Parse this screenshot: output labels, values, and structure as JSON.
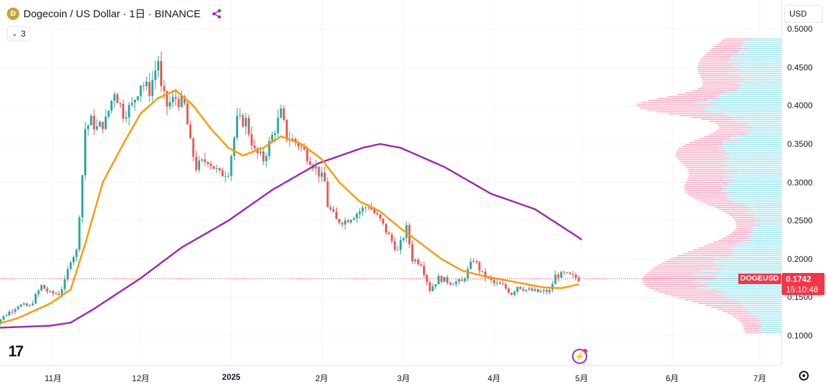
{
  "legend": {
    "symbol_title": "Dogecoin / US Dollar · 1日 · BINANCE",
    "coin_glyph": "Ð",
    "indicator_count": "3"
  },
  "currency_selector": "USD",
  "symbol_tag": "DOGEUSD",
  "last_price": "0.1742",
  "countdown": "15:10:48",
  "colors": {
    "up": "#26a69a",
    "down": "#ef5350",
    "ma_fast": "#ff9800",
    "ma_slow": "#9c27b0",
    "profile_up": "#80deea",
    "profile_down": "#f48fb1",
    "last_price": "#f23645"
  },
  "chart_data": {
    "type": "candlestick",
    "y_axis": {
      "min": 0.09,
      "max": 0.5,
      "ticks": [
        "0.5000",
        "0.4500",
        "0.4000",
        "0.3500",
        "0.3000",
        "0.2500",
        "0.2000",
        "0.1500",
        "0.1000"
      ],
      "tick_values": [
        0.5,
        0.45,
        0.4,
        0.35,
        0.3,
        0.25,
        0.2,
        0.15,
        0.1
      ],
      "grid": true
    },
    "x_axis": {
      "labels": [
        {
          "text": "11月",
          "date": "2024-11-01",
          "bold": false
        },
        {
          "text": "12月",
          "date": "2024-12-01",
          "bold": false
        },
        {
          "text": "2025",
          "date": "2025-01-01",
          "bold": true
        },
        {
          "text": "2月",
          "date": "2025-02-01",
          "bold": false
        },
        {
          "text": "3月",
          "date": "2025-03-01",
          "bold": false
        },
        {
          "text": "4月",
          "date": "2025-04-01",
          "bold": false
        },
        {
          "text": "5月",
          "date": "2025-05-01",
          "bold": false
        },
        {
          "text": "6月",
          "date": "2025-06-01",
          "bold": false
        },
        {
          "text": "7月",
          "date": "2025-07-01",
          "bold": false
        }
      ],
      "grid": true
    },
    "close_anchors": [
      [
        "2024-10-11",
        0.111
      ],
      [
        "2024-10-15",
        0.125
      ],
      [
        "2024-10-20",
        0.14
      ],
      [
        "2024-10-24",
        0.138
      ],
      [
        "2024-10-28",
        0.165
      ],
      [
        "2024-10-31",
        0.155
      ],
      [
        "2024-11-03",
        0.155
      ],
      [
        "2024-11-05",
        0.17
      ],
      [
        "2024-11-07",
        0.2
      ],
      [
        "2024-11-09",
        0.21
      ],
      [
        "2024-11-11",
        0.31
      ],
      [
        "2024-11-12",
        0.37
      ],
      [
        "2024-11-14",
        0.38
      ],
      [
        "2024-11-16",
        0.37
      ],
      [
        "2024-11-19",
        0.38
      ],
      [
        "2024-11-22",
        0.42
      ],
      [
        "2024-11-25",
        0.39
      ],
      [
        "2024-11-28",
        0.4
      ],
      [
        "2024-12-01",
        0.43
      ],
      [
        "2024-12-04",
        0.42
      ],
      [
        "2024-12-07",
        0.46
      ],
      [
        "2024-12-08",
        0.42
      ],
      [
        "2024-12-10",
        0.4
      ],
      [
        "2024-12-13",
        0.41
      ],
      [
        "2024-12-16",
        0.4
      ],
      [
        "2024-12-18",
        0.35
      ],
      [
        "2024-12-20",
        0.32
      ],
      [
        "2024-12-24",
        0.33
      ],
      [
        "2024-12-28",
        0.31
      ],
      [
        "2024-12-31",
        0.315
      ],
      [
        "2025-01-03",
        0.38
      ],
      [
        "2025-01-06",
        0.38
      ],
      [
        "2025-01-09",
        0.34
      ],
      [
        "2025-01-12",
        0.33
      ],
      [
        "2025-01-15",
        0.36
      ],
      [
        "2025-01-18",
        0.39
      ],
      [
        "2025-01-20",
        0.36
      ],
      [
        "2025-01-24",
        0.35
      ],
      [
        "2025-01-28",
        0.33
      ],
      [
        "2025-02-02",
        0.3
      ],
      [
        "2025-02-03",
        0.27
      ],
      [
        "2025-02-06",
        0.25
      ],
      [
        "2025-02-09",
        0.25
      ],
      [
        "2025-02-13",
        0.26
      ],
      [
        "2025-02-17",
        0.27
      ],
      [
        "2025-02-21",
        0.25
      ],
      [
        "2025-02-24",
        0.23
      ],
      [
        "2025-02-27",
        0.21
      ],
      [
        "2025-03-02",
        0.24
      ],
      [
        "2025-03-04",
        0.2
      ],
      [
        "2025-03-07",
        0.195
      ],
      [
        "2025-03-10",
        0.16
      ],
      [
        "2025-03-13",
        0.175
      ],
      [
        "2025-03-17",
        0.17
      ],
      [
        "2025-03-21",
        0.17
      ],
      [
        "2025-03-25",
        0.2
      ],
      [
        "2025-03-28",
        0.18
      ],
      [
        "2025-04-01",
        0.168
      ],
      [
        "2025-04-04",
        0.165
      ],
      [
        "2025-04-07",
        0.155
      ],
      [
        "2025-04-09",
        0.165
      ],
      [
        "2025-04-12",
        0.16
      ],
      [
        "2025-04-16",
        0.157
      ],
      [
        "2025-04-20",
        0.158
      ],
      [
        "2025-04-22",
        0.178
      ],
      [
        "2025-04-25",
        0.18
      ],
      [
        "2025-04-27",
        0.178
      ],
      [
        "2025-04-30",
        0.174
      ]
    ],
    "ma_fast_anchors": [
      [
        "2024-10-11",
        0.113
      ],
      [
        "2024-10-20",
        0.123
      ],
      [
        "2024-10-31",
        0.142
      ],
      [
        "2024-11-07",
        0.16
      ],
      [
        "2024-11-12",
        0.22
      ],
      [
        "2024-11-18",
        0.3
      ],
      [
        "2024-11-25",
        0.35
      ],
      [
        "2024-12-01",
        0.39
      ],
      [
        "2024-12-07",
        0.41
      ],
      [
        "2024-12-13",
        0.42
      ],
      [
        "2024-12-19",
        0.4
      ],
      [
        "2024-12-25",
        0.37
      ],
      [
        "2024-12-31",
        0.345
      ],
      [
        "2025-01-05",
        0.335
      ],
      [
        "2025-01-12",
        0.345
      ],
      [
        "2025-01-18",
        0.36
      ],
      [
        "2025-01-25",
        0.35
      ],
      [
        "2025-02-01",
        0.33
      ],
      [
        "2025-02-07",
        0.3
      ],
      [
        "2025-02-14",
        0.275
      ],
      [
        "2025-02-21",
        0.262
      ],
      [
        "2025-02-28",
        0.24
      ],
      [
        "2025-03-07",
        0.22
      ],
      [
        "2025-03-14",
        0.2
      ],
      [
        "2025-03-21",
        0.185
      ],
      [
        "2025-03-28",
        0.178
      ],
      [
        "2025-04-04",
        0.173
      ],
      [
        "2025-04-11",
        0.168
      ],
      [
        "2025-04-18",
        0.163
      ],
      [
        "2025-04-24",
        0.162
      ],
      [
        "2025-04-30",
        0.167
      ]
    ],
    "ma_slow_anchors": [
      [
        "2024-10-11",
        0.11
      ],
      [
        "2024-10-31",
        0.113
      ],
      [
        "2024-11-07",
        0.117
      ],
      [
        "2024-11-15",
        0.135
      ],
      [
        "2024-12-01",
        0.175
      ],
      [
        "2024-12-15",
        0.215
      ],
      [
        "2024-12-31",
        0.25
      ],
      [
        "2025-01-15",
        0.29
      ],
      [
        "2025-01-31",
        0.325
      ],
      [
        "2025-02-15",
        0.345
      ],
      [
        "2025-02-21",
        0.35
      ],
      [
        "2025-02-28",
        0.345
      ],
      [
        "2025-03-15",
        0.32
      ],
      [
        "2025-03-31",
        0.285
      ],
      [
        "2025-04-15",
        0.265
      ],
      [
        "2025-04-30",
        0.228
      ],
      [
        "2025-05-01",
        0.225
      ]
    ],
    "volume_profile_note": "visible range volume profile on right edge, up volume cyan, down volume pink"
  }
}
